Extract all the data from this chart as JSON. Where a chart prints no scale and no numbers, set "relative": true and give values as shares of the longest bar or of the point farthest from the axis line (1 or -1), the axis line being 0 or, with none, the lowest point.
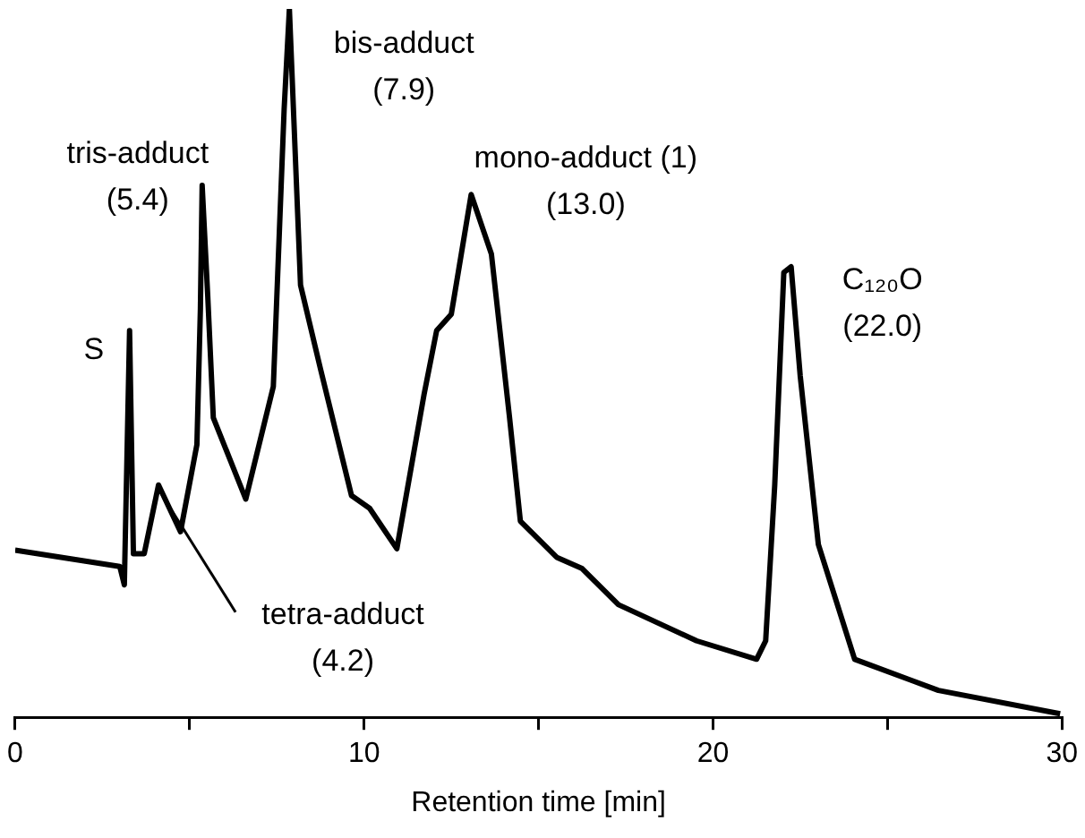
{
  "chart_data": {
    "type": "line",
    "relative": true,
    "xlabel": "Retention time [min]",
    "xlim": [
      0,
      30
    ],
    "xticks": [
      0,
      {
        "value": 5,
        "label": null
      },
      10,
      {
        "value": 15,
        "label": null
      },
      20,
      {
        "value": 25,
        "label": null
      },
      30
    ],
    "x": [
      0,
      3.0,
      3.13,
      3.28,
      3.39,
      3.7,
      4.11,
      4.74,
      5.21,
      5.31,
      5.36,
      5.52,
      5.68,
      6.61,
      7.4,
      7.71,
      7.86,
      8.18,
      8.75,
      9.64,
      10.16,
      10.94,
      11.72,
      12.08,
      12.5,
      13.07,
      13.65,
      14.17,
      14.48,
      15.52,
      16.25,
      17.29,
      19.53,
      21.25,
      21.51,
      21.77,
      22.03,
      22.24,
      22.5,
      23.02,
      24.06,
      26.46,
      29.95
    ],
    "values": [
      0.236,
      0.213,
      0.187,
      0.546,
      0.231,
      0.231,
      0.328,
      0.262,
      0.385,
      0.577,
      0.751,
      0.595,
      0.423,
      0.308,
      0.467,
      0.859,
      1,
      0.61,
      0.492,
      0.313,
      0.295,
      0.238,
      0.456,
      0.546,
      0.569,
      0.738,
      0.654,
      0.423,
      0.277,
      0.226,
      0.21,
      0.159,
      0.108,
      0.082,
      0.108,
      0.328,
      0.628,
      0.636,
      0.482,
      0.244,
      0.082,
      0.038,
      0.005
    ],
    "color": "#000000",
    "marker": "none",
    "grid": false,
    "legend": false,
    "annotations": [
      {
        "text": "S",
        "x": 3.28,
        "y": 0.546
      },
      {
        "text": "tris-adduct\n(5.4)",
        "x": 5.36,
        "y": 0.751
      },
      {
        "text": "tetra-adduct\n(4.2)",
        "x": 4.11,
        "y": 0.328
      },
      {
        "text": "bis-adduct\n(7.9)",
        "x": 7.86,
        "y": 1
      },
      {
        "text": "mono-adduct (1)\n(13.0)",
        "x": 13.07,
        "y": 0.738
      },
      {
        "text": "C₁₂₀O\n(22.0)",
        "x": 22.24,
        "y": 0.636
      }
    ]
  }
}
